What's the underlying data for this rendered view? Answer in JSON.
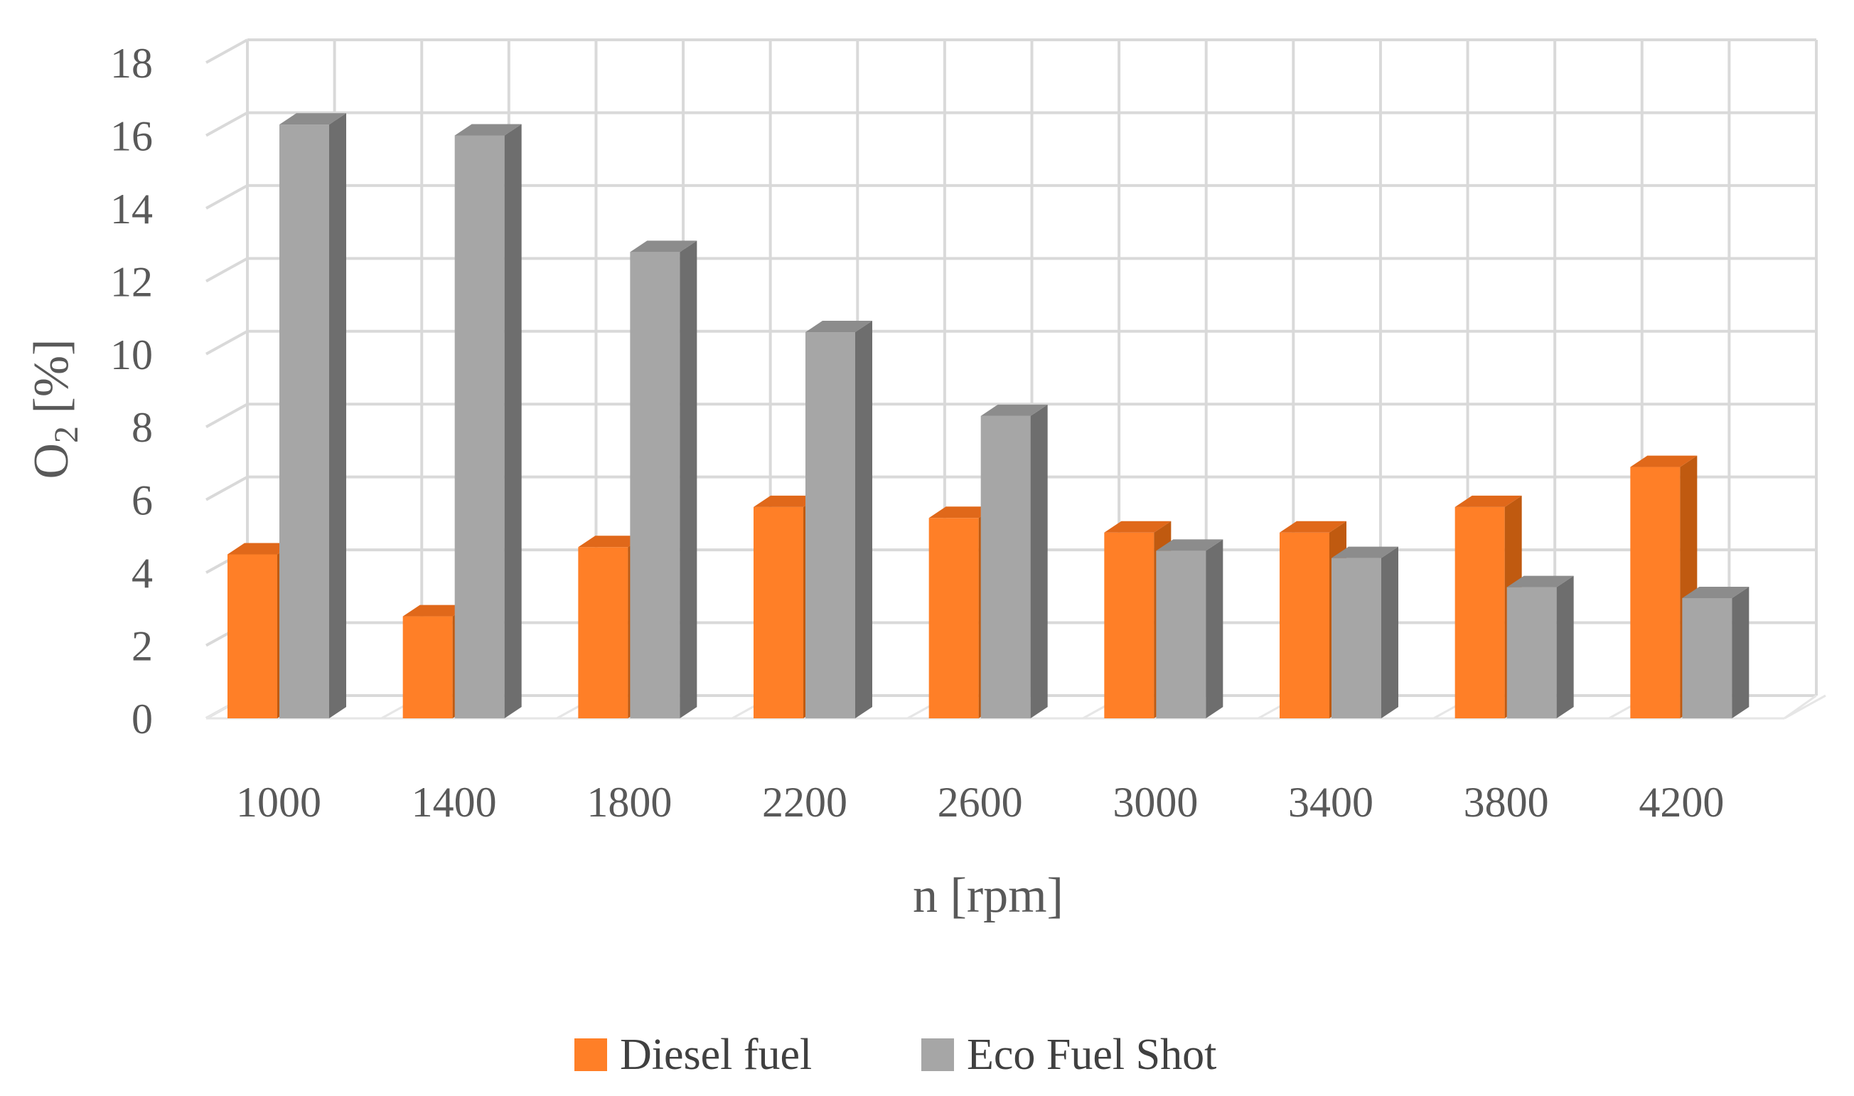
{
  "chart_data": {
    "type": "bar",
    "variant": "3d-clustered-column",
    "categories": [
      "1000",
      "1400",
      "1800",
      "2200",
      "2600",
      "3000",
      "3400",
      "3800",
      "4200"
    ],
    "series": [
      {
        "name": "Diesel fuel",
        "color": "#ff7f27",
        "side_color": "#c05a10",
        "values": [
          4.5,
          2.8,
          4.7,
          5.8,
          5.5,
          5.1,
          5.1,
          5.8,
          6.9
        ]
      },
      {
        "name": "Eco Fuel Shot",
        "color": "#a6a6a6",
        "side_color": "#6e6e6e",
        "values": [
          16.3,
          16.0,
          12.8,
          10.6,
          8.3,
          4.6,
          4.4,
          3.6,
          3.3
        ]
      }
    ],
    "y_ticks": [
      "0",
      "2",
      "4",
      "6",
      "8",
      "10",
      "12",
      "14",
      "16",
      "18"
    ],
    "ylim": [
      0,
      18
    ],
    "xlabel": "n [rpm]",
    "ylabel_main": "O",
    "ylabel_sub": "2",
    "ylabel_unit": " [%]",
    "legend_position": "bottom",
    "grid": true
  }
}
